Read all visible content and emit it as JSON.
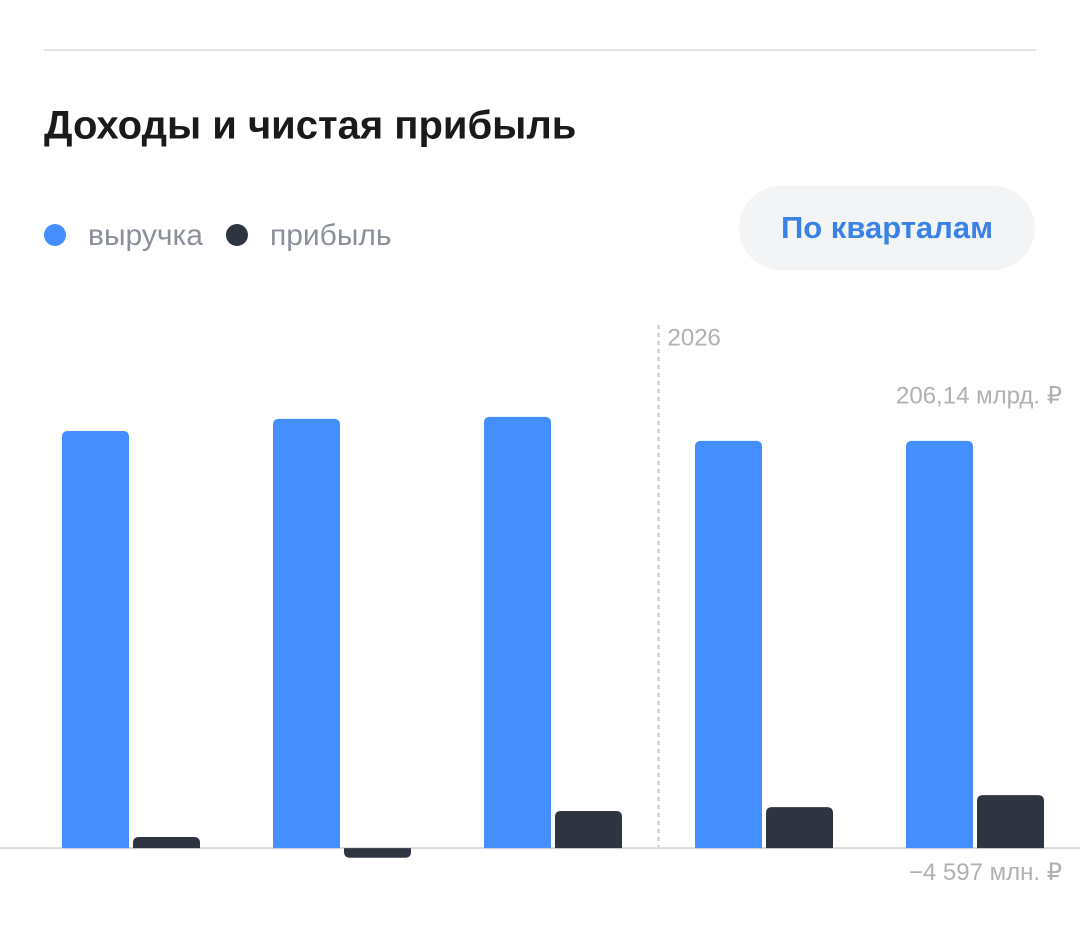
{
  "chart_data": {
    "type": "bar",
    "title": "Доходы и чистая прибыль",
    "button": "По кварталам",
    "categories": [
      null,
      null,
      null,
      null,
      null
    ],
    "series": [
      {
        "name": "выручка",
        "color": "#448eff",
        "values": [
          199.4,
          205.2,
          206.14,
          194.7,
          194.7
        ]
      },
      {
        "name": "прибыль",
        "color": "#2e3440",
        "values": [
          5.3,
          -4.597,
          17.7,
          19.6,
          25.3
        ]
      }
    ],
    "annotations": [
      {
        "value": 206.14,
        "label": "206,14 млрд. ₽"
      },
      {
        "value": -4.597,
        "label": "−4 597 млн. ₽"
      }
    ],
    "year_marker": {
      "label": "2026",
      "before_category": 3
    },
    "ylim": [
      -10,
      230
    ]
  }
}
